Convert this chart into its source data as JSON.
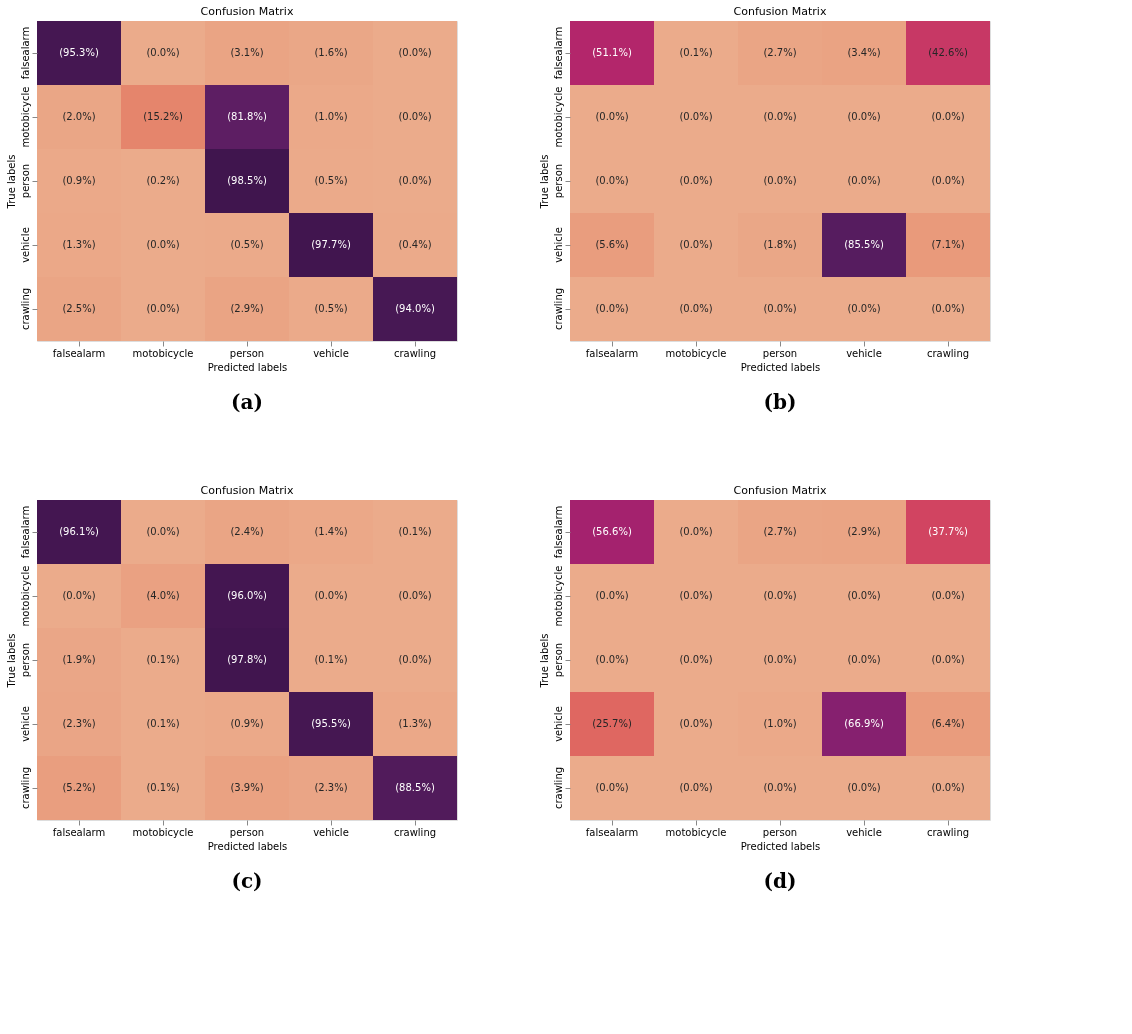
{
  "chart_data": [
    {
      "type": "heatmap",
      "title": "Confusion Matrix",
      "xlabel": "Predicted labels",
      "ylabel": "True labels",
      "annotations": [
        "(a)"
      ],
      "categories": [
        "falsealarm",
        "motobicycle",
        "person",
        "vehicle",
        "crawling"
      ],
      "y_categories": [
        "falsealarm",
        "motobicycle",
        "person",
        "vehicle",
        "crawling"
      ],
      "cells": [
        [
          95.3,
          0.0,
          3.1,
          1.6,
          0.0
        ],
        [
          2.0,
          15.2,
          81.8,
          1.0,
          0.0
        ],
        [
          0.9,
          0.2,
          98.5,
          0.5,
          0.0
        ],
        [
          1.3,
          0.0,
          0.5,
          97.7,
          0.4
        ],
        [
          2.5,
          0.0,
          2.9,
          0.5,
          94.0
        ]
      ],
      "cell_labels": [
        [
          "(95.3%)",
          "(0.0%)",
          "(3.1%)",
          "(1.6%)",
          "(0.0%)"
        ],
        [
          "(2.0%)",
          "(15.2%)",
          "(81.8%)",
          "(1.0%)",
          "(0.0%)"
        ],
        [
          "(0.9%)",
          "(0.2%)",
          "(98.5%)",
          "(0.5%)",
          "(0.0%)"
        ],
        [
          "(1.3%)",
          "(0.0%)",
          "(0.5%)",
          "(97.7%)",
          "(0.4%)"
        ],
        [
          "(2.5%)",
          "(0.0%)",
          "(2.9%)",
          "(0.5%)",
          "(94.0%)"
        ]
      ]
    },
    {
      "type": "heatmap",
      "title": "Confusion Matrix",
      "xlabel": "Predicted labels",
      "ylabel": "True labels",
      "annotations": [
        "(b)"
      ],
      "categories": [
        "falsealarm",
        "motobicycle",
        "person",
        "vehicle",
        "crawling"
      ],
      "y_categories": [
        "falsealarm",
        "motobicycle",
        "person",
        "vehicle",
        "crawling"
      ],
      "cells": [
        [
          51.1,
          0.1,
          2.7,
          3.4,
          42.6
        ],
        [
          0.0,
          0.0,
          0.0,
          0.0,
          0.0
        ],
        [
          0.0,
          0.0,
          0.0,
          0.0,
          0.0
        ],
        [
          5.6,
          0.0,
          1.8,
          85.5,
          7.1
        ],
        [
          0.0,
          0.0,
          0.0,
          0.0,
          0.0
        ]
      ],
      "cell_labels": [
        [
          "(51.1%)",
          "(0.1%)",
          "(2.7%)",
          "(3.4%)",
          "(42.6%)"
        ],
        [
          "(0.0%)",
          "(0.0%)",
          "(0.0%)",
          "(0.0%)",
          "(0.0%)"
        ],
        [
          "(0.0%)",
          "(0.0%)",
          "(0.0%)",
          "(0.0%)",
          "(0.0%)"
        ],
        [
          "(5.6%)",
          "(0.0%)",
          "(1.8%)",
          "(85.5%)",
          "(7.1%)"
        ],
        [
          "(0.0%)",
          "(0.0%)",
          "(0.0%)",
          "(0.0%)",
          "(0.0%)"
        ]
      ]
    },
    {
      "type": "heatmap",
      "title": "Confusion Matrix",
      "xlabel": "Predicted labels",
      "ylabel": "True labels",
      "annotations": [
        "(c)"
      ],
      "categories": [
        "falsealarm",
        "motobicycle",
        "person",
        "vehicle",
        "crawling"
      ],
      "y_categories": [
        "falsealarm",
        "motobicycle",
        "person",
        "vehicle",
        "crawling"
      ],
      "cells": [
        [
          96.1,
          0.0,
          2.4,
          1.4,
          0.1
        ],
        [
          0.0,
          4.0,
          96.0,
          0.0,
          0.0
        ],
        [
          1.9,
          0.1,
          97.8,
          0.1,
          0.0
        ],
        [
          2.3,
          0.1,
          0.9,
          95.5,
          1.3
        ],
        [
          5.2,
          0.1,
          3.9,
          2.3,
          88.5
        ]
      ],
      "cell_labels": [
        [
          "(96.1%)",
          "(0.0%)",
          "(2.4%)",
          "(1.4%)",
          "(0.1%)"
        ],
        [
          "(0.0%)",
          "(4.0%)",
          "(96.0%)",
          "(0.0%)",
          "(0.0%)"
        ],
        [
          "(1.9%)",
          "(0.1%)",
          "(97.8%)",
          "(0.1%)",
          "(0.0%)"
        ],
        [
          "(2.3%)",
          "(0.1%)",
          "(0.9%)",
          "(95.5%)",
          "(1.3%)"
        ],
        [
          "(5.2%)",
          "(0.1%)",
          "(3.9%)",
          "(2.3%)",
          "(88.5%)"
        ]
      ]
    },
    {
      "type": "heatmap",
      "title": "Confusion Matrix",
      "xlabel": "Predicted labels",
      "ylabel": "True labels",
      "annotations": [
        "(d)"
      ],
      "categories": [
        "falsealarm",
        "motobicycle",
        "person",
        "vehicle",
        "crawling"
      ],
      "y_categories": [
        "falsealarm",
        "motobicycle",
        "person",
        "vehicle",
        "crawling"
      ],
      "cells": [
        [
          56.6,
          0.0,
          2.7,
          2.9,
          37.7
        ],
        [
          0.0,
          0.0,
          0.0,
          0.0,
          0.0
        ],
        [
          0.0,
          0.0,
          0.0,
          0.0,
          0.0
        ],
        [
          25.7,
          0.0,
          1.0,
          66.9,
          6.4
        ],
        [
          0.0,
          0.0,
          0.0,
          0.0,
          0.0
        ]
      ],
      "cell_labels": [
        [
          "(56.6%)",
          "(0.0%)",
          "(2.7%)",
          "(2.9%)",
          "(37.7%)"
        ],
        [
          "(0.0%)",
          "(0.0%)",
          "(0.0%)",
          "(0.0%)",
          "(0.0%)"
        ],
        [
          "(0.0%)",
          "(0.0%)",
          "(0.0%)",
          "(0.0%)",
          "(0.0%)"
        ],
        [
          "(25.7%)",
          "(0.0%)",
          "(1.0%)",
          "(66.9%)",
          "(6.4%)"
        ],
        [
          "(0.0%)",
          "(0.0%)",
          "(0.0%)",
          "(0.0%)",
          "(0.0%)"
        ]
      ]
    }
  ]
}
